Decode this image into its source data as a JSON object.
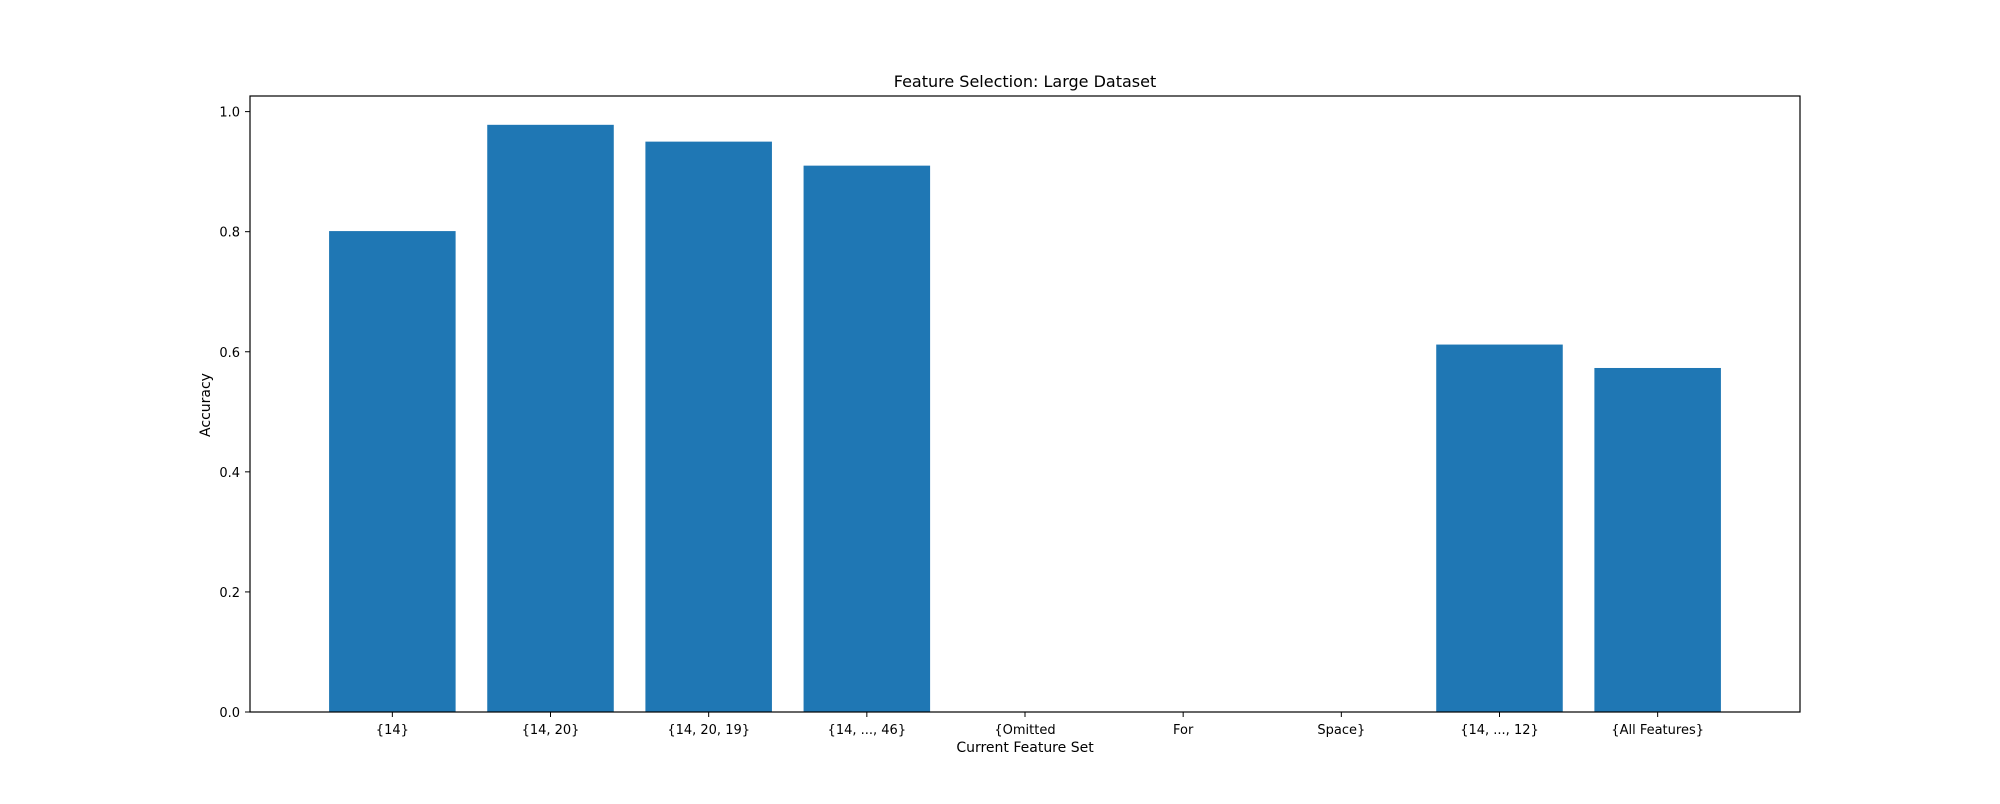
{
  "chart_data": {
    "type": "bar",
    "title": "Feature Selection: Large Dataset",
    "xlabel": "Current Feature Set",
    "ylabel": "Accuracy",
    "categories": [
      "{14}",
      "{14, 20}",
      "{14, 20, 19}",
      "{14, ..., 46}",
      "{Omitted",
      "For",
      "Space}",
      "{14, ..., 12}",
      "{All Features}"
    ],
    "values": [
      0.801,
      0.978,
      0.95,
      0.91,
      0,
      0,
      0,
      0.612,
      0.573
    ],
    "ylim": [
      0,
      1.026
    ],
    "yticks": [
      0.0,
      0.2,
      0.4,
      0.6,
      0.8,
      1.0
    ],
    "ytick_labels": [
      "0.0",
      "0.2",
      "0.4",
      "0.6",
      "0.8",
      "1.0"
    ],
    "grid": false,
    "legend": "none",
    "colors": {
      "bar": "#1f77b4",
      "axes": "#000000",
      "background": "#ffffff"
    }
  }
}
